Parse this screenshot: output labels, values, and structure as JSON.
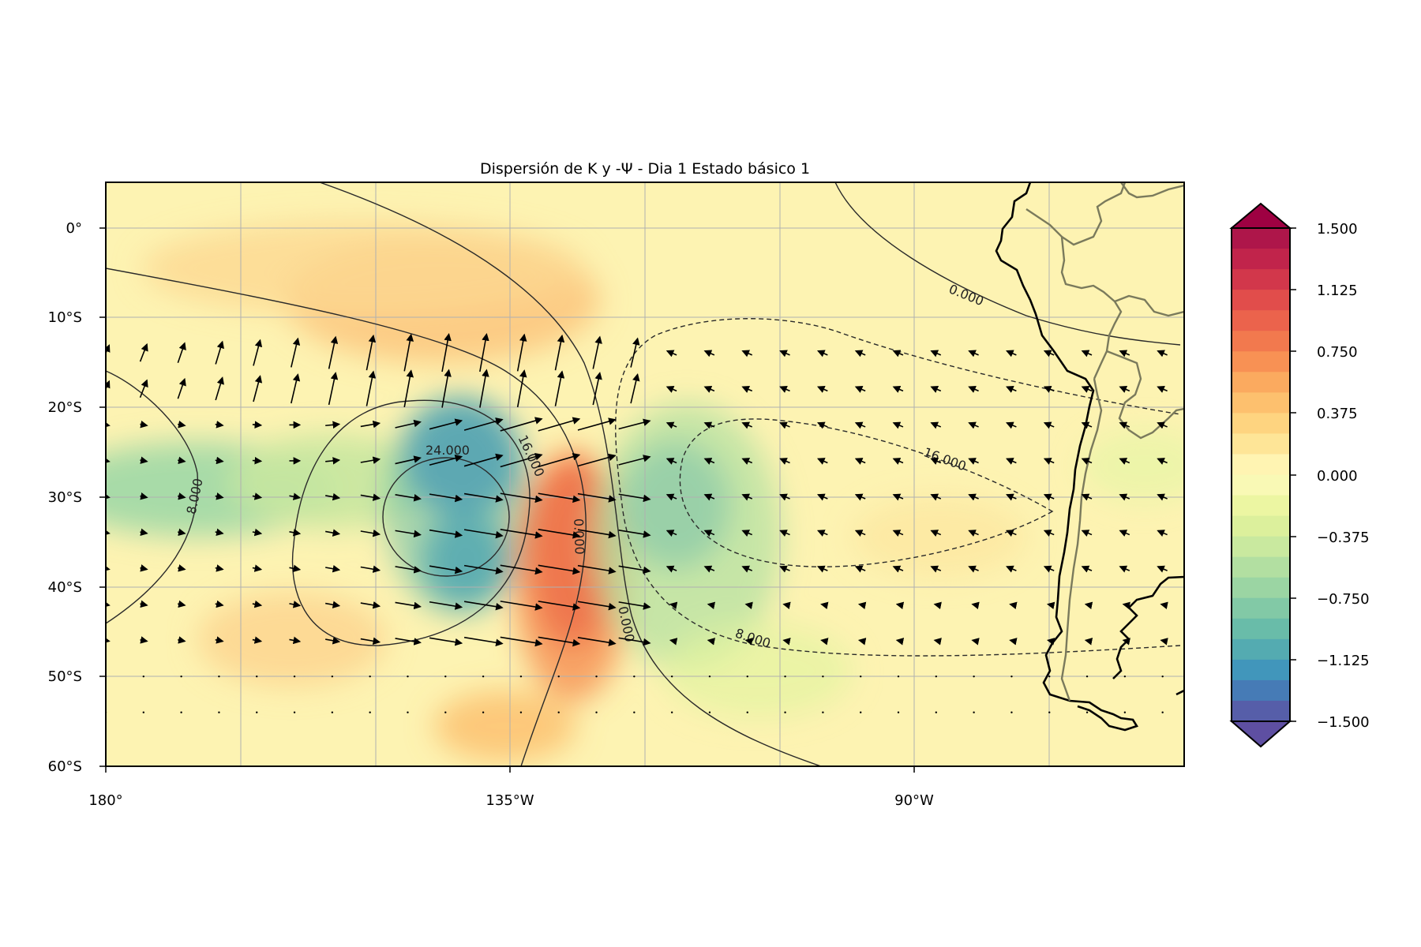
{
  "title": "Dispersión de K y -Ψ - Dia 1 Estado básico 1",
  "map": {
    "x_ticks": [
      {
        "lon": -180,
        "label": "180°"
      },
      {
        "lon": -135,
        "label": "135°W"
      },
      {
        "lon": -90,
        "label": "90°W"
      }
    ],
    "y_ticks": [
      {
        "lat": 0,
        "label": "0°"
      },
      {
        "lat": -10,
        "label": "10°S"
      },
      {
        "lat": -20,
        "label": "20°S"
      },
      {
        "lat": -30,
        "label": "30°S"
      },
      {
        "lat": -40,
        "label": "40°S"
      },
      {
        "lat": -50,
        "label": "50°S"
      },
      {
        "lat": -60,
        "label": "60°S"
      }
    ],
    "lon_range": [
      -180,
      -60
    ],
    "lat_range": [
      -60,
      5
    ],
    "grid": true
  },
  "chart_data": {
    "type": "heatmap",
    "title": "Dispersión de K y -Ψ - Dia 1 Estado básico 1",
    "xlim": [
      -180,
      -60
    ],
    "ylim": [
      -60,
      5
    ],
    "colormap": "Spectral_r",
    "color_range": [
      -1.5,
      1.5
    ],
    "extend": "both",
    "filled_field_features": [
      {
        "lon": -140,
        "lat": -26,
        "value": -1.35
      },
      {
        "lon": -135,
        "lat": -38,
        "value": -1.2
      },
      {
        "lon": -118,
        "lat": -32,
        "value": -1.2
      },
      {
        "lon": -128,
        "lat": -35,
        "value": 1.35
      },
      {
        "lon": -140,
        "lat": -12,
        "value": 0.6
      },
      {
        "lon": -170,
        "lat": -30,
        "value": -0.55
      },
      {
        "lon": -158,
        "lat": -45,
        "value": 0.3
      }
    ],
    "contour_labels": [
      {
        "text": "24.000"
      },
      {
        "text": "16.000"
      },
      {
        "text": "8.000"
      },
      {
        "text": "0.000"
      },
      {
        "text": "0.000"
      },
      {
        "text": "0.000"
      },
      {
        "text": "16.000"
      },
      {
        "text": "8.000"
      }
    ],
    "colorbar": {
      "ticks": [
        "1.500",
        "1.125",
        "0.750",
        "0.375",
        "0.000",
        "−0.375",
        "−0.750",
        "−1.125",
        "−1.500"
      ],
      "tick_values": [
        1.5,
        1.125,
        0.75,
        0.375,
        0.0,
        -0.375,
        -0.75,
        -1.125,
        -1.5
      ],
      "colors": [
        "#9e0142",
        "#d53e4f",
        "#f46d43",
        "#fdae61",
        "#fee08b",
        "#fff6b8",
        "#e6f598",
        "#abdda4",
        "#66c2a5",
        "#3288bd",
        "#5e4fa2"
      ]
    },
    "vector_field": "wave activity flux arrows"
  }
}
